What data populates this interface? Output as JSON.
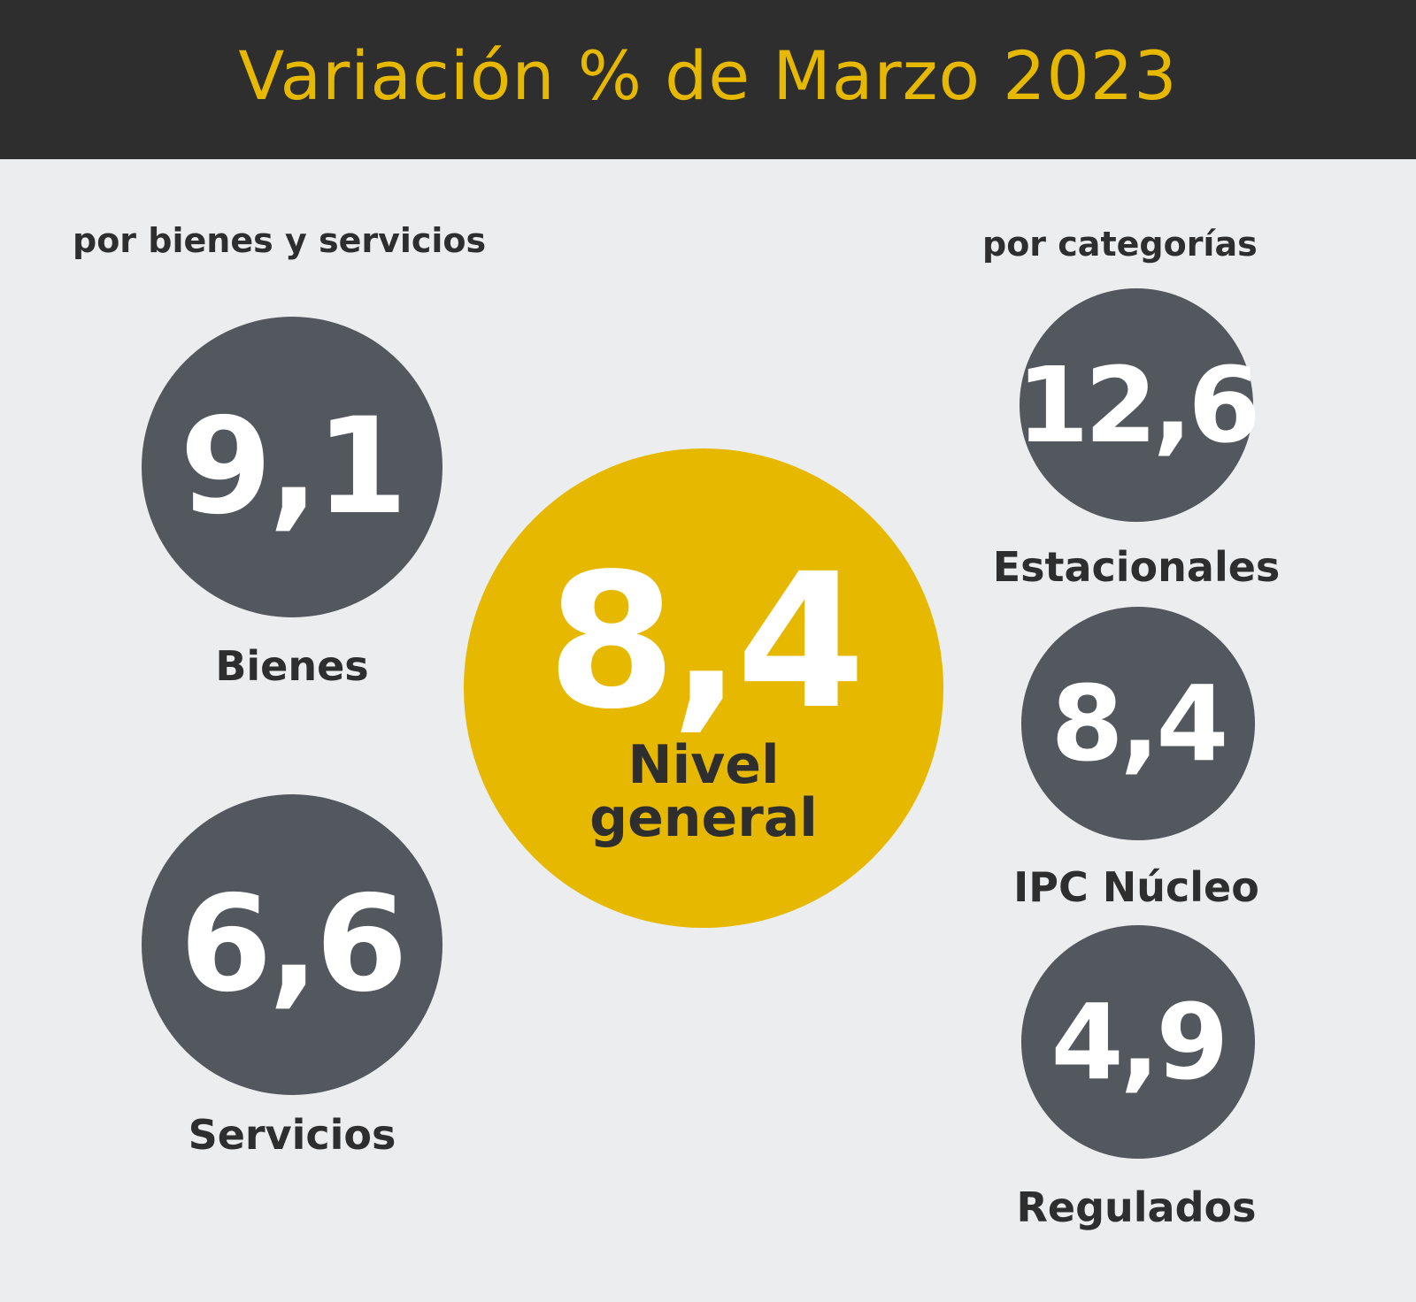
{
  "title": "Variación % de Marzo 2023",
  "sections": {
    "goods_services": "por bienes y servicios",
    "categories": "por categorías"
  },
  "goods_services": [
    {
      "value": "9,1",
      "label": "Bienes"
    },
    {
      "value": "6,6",
      "label": "Servicios"
    }
  ],
  "main": {
    "value": "8,4",
    "label_line1": "Nivel",
    "label_line2": "general"
  },
  "categories": [
    {
      "value": "12,6",
      "label": "Estacionales"
    },
    {
      "value": "8,4",
      "label": "IPC Núcleo"
    },
    {
      "value": "4,9",
      "label": "Regulados"
    }
  ],
  "colors": {
    "header_bg": "#2e2e2e",
    "accent": "#e6b800",
    "circle_dark": "#53575e",
    "background": "#ecedef"
  }
}
